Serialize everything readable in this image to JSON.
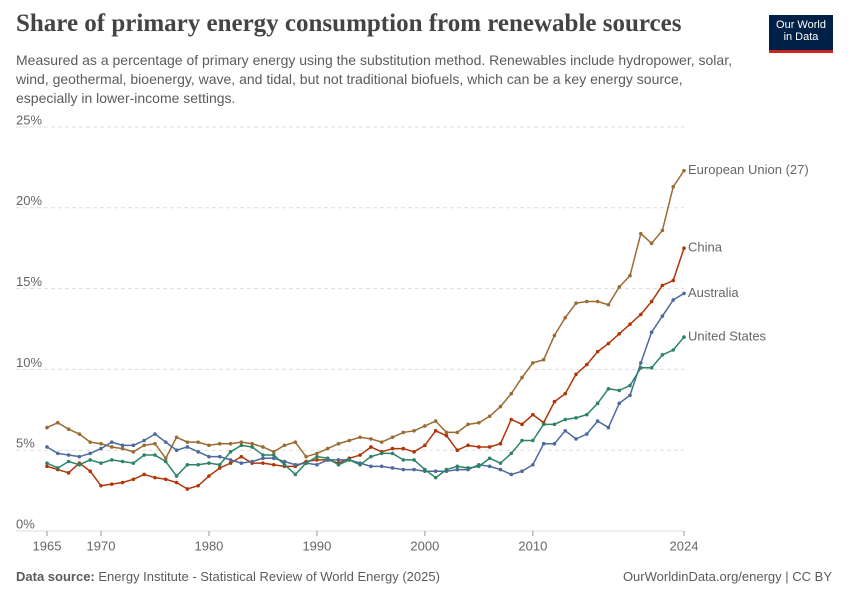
{
  "header": {
    "title": "Share of primary energy consumption from renewable sources",
    "subtitle": "Measured as a percentage of primary energy using the substitution method. Renewables include hydropower, solar, wind, geothermal, bioenergy, wave, and tidal, but not traditional biofuels, which can be a key energy source, especially in lower-income settings.",
    "logo": [
      "Our World",
      "in Data"
    ]
  },
  "chart_data": {
    "type": "line",
    "x": [
      1965,
      1966,
      1967,
      1968,
      1969,
      1970,
      1971,
      1972,
      1973,
      1974,
      1975,
      1976,
      1977,
      1978,
      1979,
      1980,
      1981,
      1982,
      1983,
      1984,
      1985,
      1986,
      1987,
      1988,
      1989,
      1990,
      1991,
      1992,
      1993,
      1994,
      1995,
      1996,
      1997,
      1998,
      1999,
      2000,
      2001,
      2002,
      2003,
      2004,
      2005,
      2006,
      2007,
      2008,
      2009,
      2010,
      2011,
      2012,
      2013,
      2014,
      2015,
      2016,
      2017,
      2018,
      2019,
      2020,
      2021,
      2022,
      2023,
      2024
    ],
    "xlim": [
      1965,
      2024
    ],
    "xticks": [
      1965,
      1970,
      1980,
      1990,
      2000,
      2010,
      2024
    ],
    "ylim": [
      0,
      25
    ],
    "yticks": [
      {
        "value": 0,
        "label": "0%"
      },
      {
        "value": 5,
        "label": "5%"
      },
      {
        "value": 10,
        "label": "10%"
      },
      {
        "value": 15,
        "label": "15%"
      },
      {
        "value": 20,
        "label": "20%"
      },
      {
        "value": 25,
        "label": "25%"
      }
    ],
    "grid": true,
    "series": [
      {
        "name": "European Union (27)",
        "color": "#9a6b32",
        "values": [
          6.4,
          6.7,
          6.3,
          6.0,
          5.5,
          5.4,
          5.2,
          5.1,
          4.9,
          5.3,
          5.4,
          4.5,
          5.8,
          5.5,
          5.5,
          5.3,
          5.4,
          5.4,
          5.5,
          5.4,
          5.2,
          4.9,
          5.3,
          5.5,
          4.6,
          4.8,
          5.1,
          5.4,
          5.6,
          5.8,
          5.7,
          5.5,
          5.8,
          6.1,
          6.2,
          6.5,
          6.8,
          6.1,
          6.1,
          6.6,
          6.7,
          7.1,
          7.7,
          8.5,
          9.5,
          10.4,
          10.6,
          12.1,
          13.2,
          14.1,
          14.2,
          14.2,
          14.0,
          15.1,
          15.8,
          18.4,
          17.8,
          18.6,
          21.3,
          22.3
        ]
      },
      {
        "name": "China",
        "color": "#b13507",
        "values": [
          4.0,
          3.8,
          3.6,
          4.2,
          3.7,
          2.8,
          2.9,
          3.0,
          3.2,
          3.5,
          3.3,
          3.2,
          3.0,
          2.6,
          2.8,
          3.4,
          3.9,
          4.2,
          4.6,
          4.2,
          4.2,
          4.1,
          4.0,
          4.0,
          4.3,
          4.4,
          4.4,
          4.2,
          4.5,
          4.7,
          5.2,
          4.9,
          5.1,
          5.1,
          4.9,
          5.3,
          6.2,
          5.9,
          5.0,
          5.3,
          5.2,
          5.2,
          5.4,
          6.9,
          6.6,
          7.2,
          6.7,
          8.0,
          8.5,
          9.7,
          10.3,
          11.1,
          11.6,
          12.2,
          12.8,
          13.4,
          14.2,
          15.2,
          15.5,
          17.5
        ]
      },
      {
        "name": "Australia",
        "color": "#4c6a9c",
        "values": [
          5.2,
          4.8,
          4.7,
          4.6,
          4.8,
          5.1,
          5.5,
          5.3,
          5.3,
          5.6,
          6.0,
          5.5,
          5.0,
          5.2,
          4.9,
          4.6,
          4.6,
          4.4,
          4.2,
          4.3,
          4.5,
          4.5,
          4.3,
          4.1,
          4.2,
          4.1,
          4.4,
          4.4,
          4.4,
          4.2,
          4.0,
          4.0,
          3.9,
          3.8,
          3.8,
          3.7,
          3.7,
          3.7,
          3.8,
          3.8,
          4.1,
          4.0,
          3.8,
          3.5,
          3.7,
          4.1,
          5.4,
          5.4,
          6.2,
          5.7,
          6.0,
          6.8,
          6.4,
          7.9,
          8.4,
          10.4,
          12.3,
          13.3,
          14.3,
          14.7
        ]
      },
      {
        "name": "United States",
        "color": "#2c8465",
        "values": [
          4.2,
          3.9,
          4.3,
          4.1,
          4.4,
          4.2,
          4.4,
          4.3,
          4.2,
          4.7,
          4.7,
          4.3,
          3.4,
          4.1,
          4.1,
          4.2,
          4.1,
          4.9,
          5.3,
          5.2,
          4.7,
          4.7,
          4.1,
          3.5,
          4.2,
          4.6,
          4.5,
          4.1,
          4.4,
          4.1,
          4.6,
          4.8,
          4.8,
          4.4,
          4.4,
          3.8,
          3.3,
          3.8,
          4.0,
          3.9,
          4.0,
          4.5,
          4.2,
          4.8,
          5.6,
          5.6,
          6.6,
          6.6,
          6.9,
          7.0,
          7.2,
          7.9,
          8.8,
          8.7,
          9.0,
          10.1,
          10.1,
          10.9,
          11.2,
          12.0
        ]
      }
    ]
  },
  "footer": {
    "source_label": "Data source:",
    "source": "Energy Institute - Statistical Review of World Energy (2025)",
    "credit": "OurWorldinData.org/energy | CC BY"
  }
}
